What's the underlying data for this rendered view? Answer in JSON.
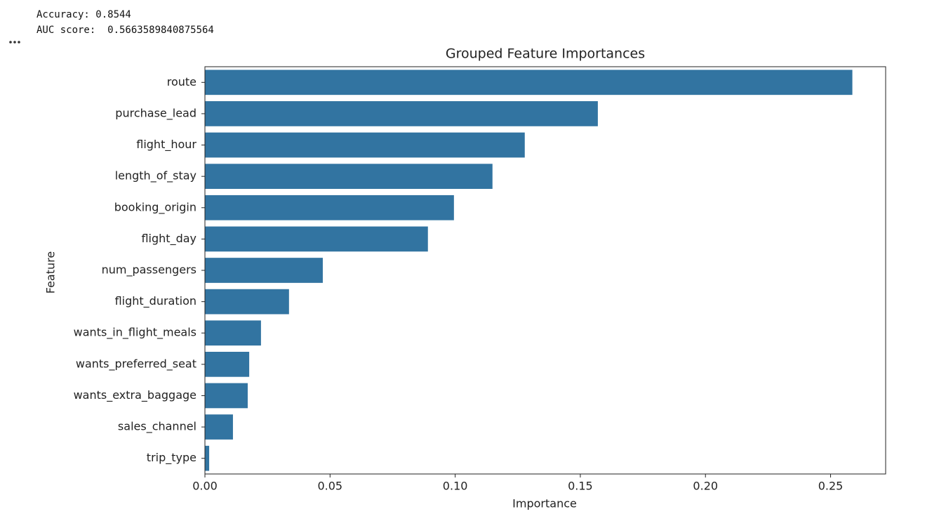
{
  "output": {
    "lines": [
      "Accuracy: 0.8544",
      "AUC score:  0.5663589840875564"
    ]
  },
  "chart_data": {
    "type": "barh",
    "title": "Grouped Feature Importances",
    "xlabel": "Importance",
    "ylabel": "Feature",
    "categories": [
      "route",
      "purchase_lead",
      "flight_hour",
      "length_of_stay",
      "booking_origin",
      "flight_day",
      "num_passengers",
      "flight_duration",
      "wants_in_flight_meals",
      "wants_preferred_seat",
      "wants_extra_baggage",
      "sales_channel",
      "trip_type"
    ],
    "values": [
      0.2587,
      0.157,
      0.1278,
      0.1149,
      0.0995,
      0.0891,
      0.0471,
      0.0336,
      0.0224,
      0.0177,
      0.0171,
      0.0112,
      0.0017
    ],
    "color": "#3274a1",
    "xlim": [
      0,
      0.272
    ],
    "xticks": [
      {
        "value": 0,
        "label": "0.00"
      },
      0.05,
      {
        "value": 0.1,
        "label": "0.10"
      },
      0.15,
      {
        "value": 0.2,
        "label": "0.20"
      },
      0.25
    ]
  }
}
